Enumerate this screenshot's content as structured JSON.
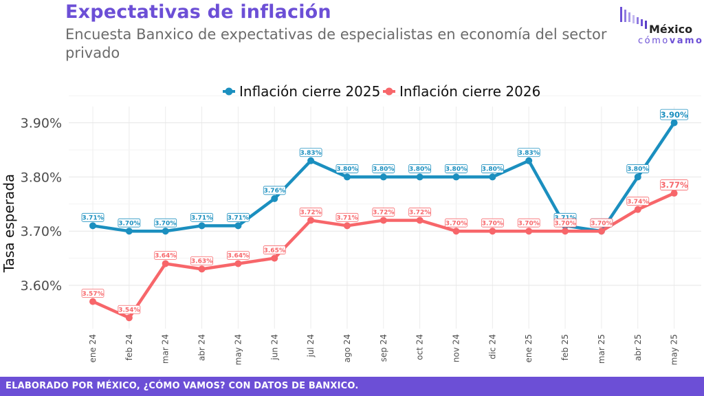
{
  "header": {
    "title": "Expectativas de inflación",
    "subtitle": "Encuesta Banxico de expectativas de especialistas en economía del sector privado"
  },
  "logo": {
    "line1": "México",
    "line2a": "cómo",
    "line2b": "vamos"
  },
  "footer": {
    "text": "ELABORADO POR MÉXICO, ¿CÓMO VAMOS? CON DATOS DE BANXICO."
  },
  "colors": {
    "accent": "#6c4fd6",
    "series_2025": "#1b8fbf",
    "series_2026": "#f7666a"
  },
  "chart_data": {
    "type": "line",
    "title": "",
    "xlabel": "",
    "ylabel": "Tasa esperada",
    "ylim": [
      3.52,
      3.93
    ],
    "yticks": [
      "3.60%",
      "3.70%",
      "3.80%",
      "3.90%"
    ],
    "ytick_values": [
      3.6,
      3.7,
      3.8,
      3.9
    ],
    "grid": true,
    "legend": "top-center",
    "categories": [
      "ene 24",
      "feb 24",
      "mar 24",
      "abr 24",
      "may 24",
      "jun 24",
      "jul 24",
      "ago 24",
      "sep 24",
      "oct 24",
      "nov 24",
      "dic 24",
      "ene 25",
      "feb 25",
      "mar 25",
      "abr 25",
      "may 25"
    ],
    "series": [
      {
        "name": "Inflación cierre 2025",
        "color": "#1b8fbf",
        "values": [
          3.71,
          3.7,
          3.7,
          3.71,
          3.71,
          3.76,
          3.83,
          3.8,
          3.8,
          3.8,
          3.8,
          3.8,
          3.83,
          3.71,
          3.7,
          3.8,
          3.9
        ],
        "labels": [
          "3.71%",
          "3.70%",
          "3.70%",
          "3.71%",
          "3.71%",
          "3.76%",
          "3.83%",
          "3.80%",
          "3.80%",
          "3.80%",
          "3.80%",
          "3.80%",
          "3.83%",
          "3.71%",
          "3.70%",
          "3.80%",
          "3.90%"
        ]
      },
      {
        "name": "Inflación cierre 2026",
        "color": "#f7666a",
        "values": [
          3.57,
          3.54,
          3.64,
          3.63,
          3.64,
          3.65,
          3.72,
          3.71,
          3.72,
          3.72,
          3.7,
          3.7,
          3.7,
          3.7,
          3.7,
          3.74,
          3.77
        ],
        "labels": [
          "3.57%",
          "3.54%",
          "3.64%",
          "3.63%",
          "3.64%",
          "3.65%",
          "3.72%",
          "3.71%",
          "3.72%",
          "3.72%",
          "3.70%",
          "3.70%",
          "3.70%",
          "3.70%",
          "3.70%",
          "3.74%",
          "3.77%"
        ]
      }
    ]
  }
}
